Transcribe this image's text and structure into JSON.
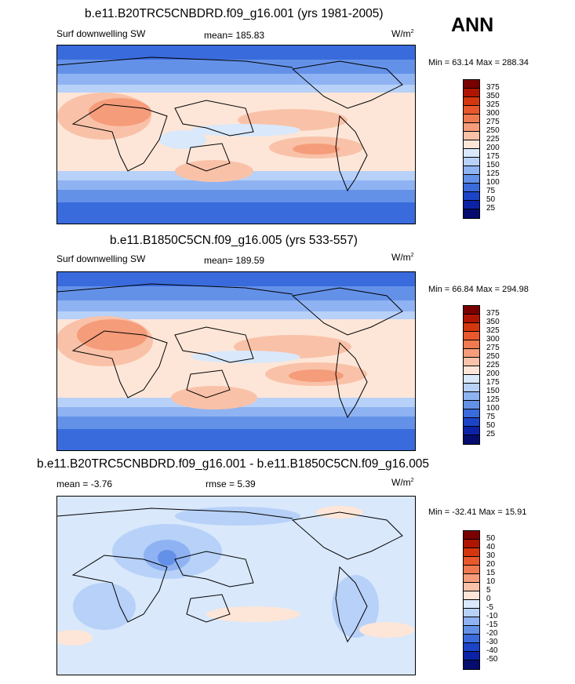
{
  "season": "ANN",
  "panels": [
    {
      "title": "b.e11.B20TRC5CNBDRD.f09_g16.001 (yrs 1981-2005)",
      "left_text": "Surf downwelling SW",
      "center_text": "mean= 185.83",
      "units": "W/m",
      "units_sup": "2",
      "minmax": "Min =  63.14 Max = 288.34",
      "colorbar": {
        "labels": [
          "375",
          "350",
          "325",
          "300",
          "275",
          "250",
          "225",
          "200",
          "175",
          "150",
          "125",
          "100",
          "75",
          "50",
          "25"
        ],
        "colors": [
          "#7a0000",
          "#b01500",
          "#d4370e",
          "#e8582c",
          "#f07a50",
          "#f59c7a",
          "#f9c2a8",
          "#fde6d8",
          "#d9e8fb",
          "#b7d1f8",
          "#8fb3f2",
          "#6491e8",
          "#3a6bdc",
          "#1c44c8",
          "#0c22a6",
          "#050c6e"
        ]
      }
    },
    {
      "title": "b.e11.B1850C5CN.f09_g16.005 (yrs 533-557)",
      "left_text": "Surf downwelling SW",
      "center_text": "mean= 189.59",
      "units": "W/m",
      "units_sup": "2",
      "minmax": "Min =  66.84 Max = 294.98",
      "colorbar": {
        "labels": [
          "375",
          "350",
          "325",
          "300",
          "275",
          "250",
          "225",
          "200",
          "175",
          "150",
          "125",
          "100",
          "75",
          "50",
          "25"
        ],
        "colors": [
          "#7a0000",
          "#b01500",
          "#d4370e",
          "#e8582c",
          "#f07a50",
          "#f59c7a",
          "#f9c2a8",
          "#fde6d8",
          "#d9e8fb",
          "#b7d1f8",
          "#8fb3f2",
          "#6491e8",
          "#3a6bdc",
          "#1c44c8",
          "#0c22a6",
          "#050c6e"
        ]
      }
    },
    {
      "title": "b.e11.B20TRC5CNBDRD.f09_g16.001 - b.e11.B1850C5CN.f09_g16.005",
      "left_text": "mean =  -3.76",
      "center_text": "rmse =   5.39",
      "units": "W/m",
      "units_sup": "2",
      "minmax": "Min = -32.41 Max =  15.91",
      "colorbar": {
        "labels": [
          "50",
          "40",
          "30",
          "20",
          "15",
          "10",
          "5",
          "0",
          "-5",
          "-10",
          "-15",
          "-20",
          "-30",
          "-40",
          "-50"
        ],
        "colors": [
          "#7a0000",
          "#b01500",
          "#d4370e",
          "#e8582c",
          "#f07a50",
          "#f59c7a",
          "#f9c2a8",
          "#fde6d8",
          "#d9e8fb",
          "#b7d1f8",
          "#8fb3f2",
          "#6491e8",
          "#3a6bdc",
          "#1c44c8",
          "#0c22a6",
          "#050c6e"
        ]
      }
    }
  ],
  "chart_data": [
    {
      "type": "heatmap",
      "title": "b.e11.B20TRC5CNBDRD.f09_g16.001 (yrs 1981-2005)",
      "variable": "Surf downwelling SW",
      "units": "W/m2",
      "mean": 185.83,
      "min": 63.14,
      "max": 288.34,
      "contour_levels": [
        25,
        50,
        75,
        100,
        125,
        150,
        175,
        200,
        225,
        250,
        275,
        300,
        325,
        350,
        375
      ]
    },
    {
      "type": "heatmap",
      "title": "b.e11.B1850C5CN.f09_g16.005 (yrs 533-557)",
      "variable": "Surf downwelling SW",
      "units": "W/m2",
      "mean": 189.59,
      "min": 66.84,
      "max": 294.98,
      "contour_levels": [
        25,
        50,
        75,
        100,
        125,
        150,
        175,
        200,
        225,
        250,
        275,
        300,
        325,
        350,
        375
      ]
    },
    {
      "type": "heatmap",
      "title": "b.e11.B20TRC5CNBDRD.f09_g16.001 - b.e11.B1850C5CN.f09_g16.005",
      "units": "W/m2",
      "mean": -3.76,
      "rmse": 5.39,
      "min": -32.41,
      "max": 15.91,
      "contour_levels": [
        -50,
        -40,
        -30,
        -20,
        -15,
        -10,
        -5,
        0,
        5,
        10,
        15,
        20,
        30,
        40,
        50
      ]
    }
  ]
}
